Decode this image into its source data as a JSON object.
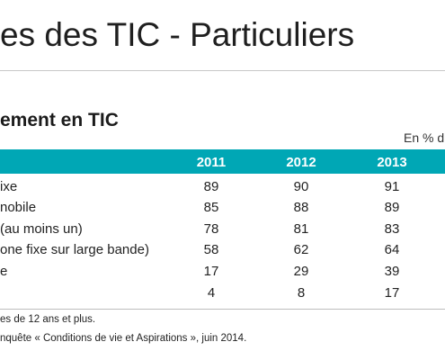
{
  "header": {
    "title": "es des TIC - Particuliers",
    "section_title": "ement en TIC",
    "unit_note": "En % d"
  },
  "table": {
    "columns": [
      "2011",
      "2012",
      "2013"
    ],
    "rows": [
      {
        "label": "ixe",
        "values": [
          "89",
          "90",
          "91"
        ]
      },
      {
        "label": "nobile",
        "values": [
          "85",
          "88",
          "89"
        ]
      },
      {
        "label": "(au moins un)",
        "values": [
          "78",
          "81",
          "83"
        ]
      },
      {
        "label": "one fixe sur large bande)",
        "values": [
          "58",
          "62",
          "64"
        ]
      },
      {
        "label": "e",
        "values": [
          "17",
          "29",
          "39"
        ]
      },
      {
        "label": "",
        "values": [
          "4",
          "8",
          "17"
        ]
      }
    ]
  },
  "footnotes": {
    "scope": "es de 12 ans et plus.",
    "source": "nquête « Conditions de vie et Aspirations », juin 2014."
  }
}
